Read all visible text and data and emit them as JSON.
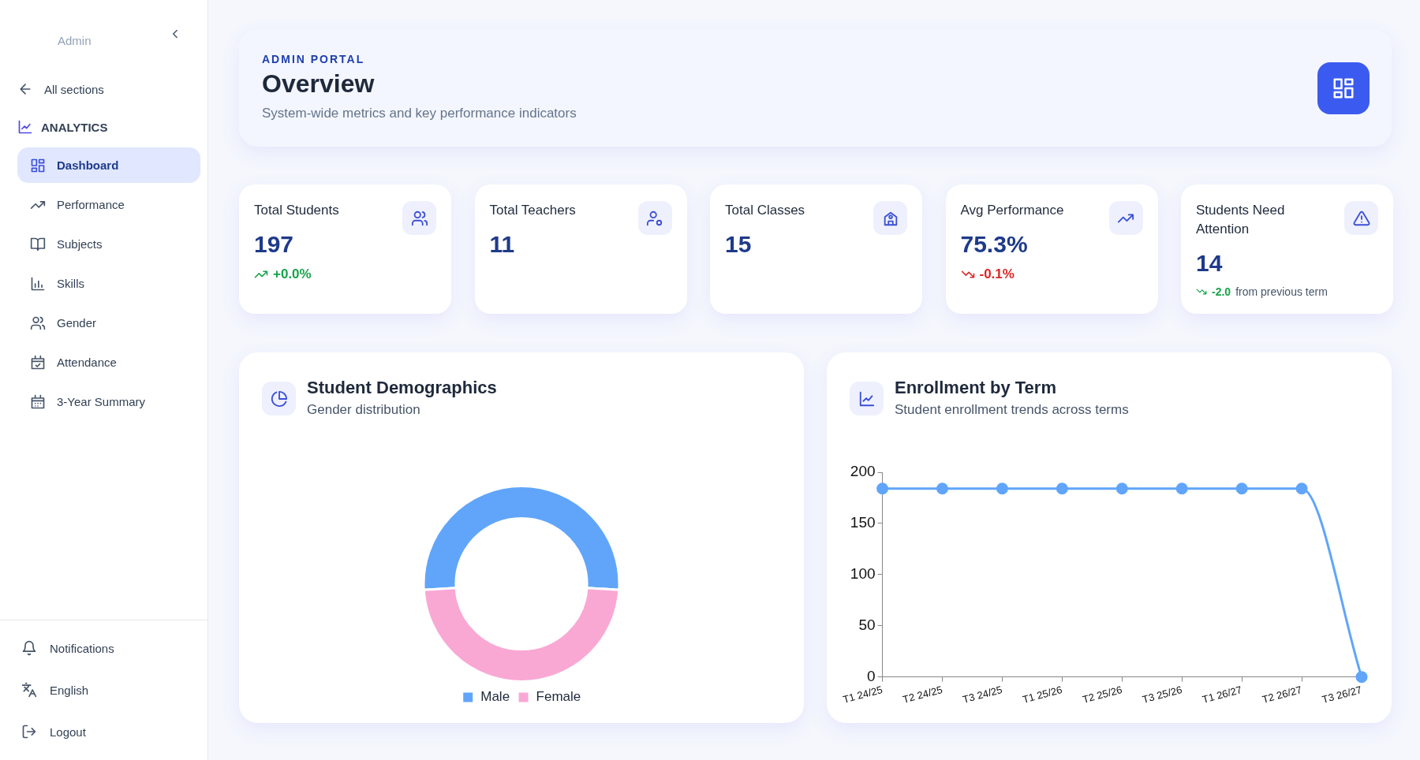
{
  "chart_data": [
    {
      "type": "other",
      "annotations": [
        "Admin",
        "All sections",
        "ANALYTICS",
        "Dashboard",
        "Performance",
        "Subjects",
        "Skills",
        "Gender",
        "Attendance",
        "3-Year Summary",
        "Notifications",
        "English",
        "Logout"
      ]
    },
    {
      "type": "other",
      "title": "Overview",
      "subtitle": "System-wide metrics and key performance indicators",
      "annotations": [
        "ADMIN PORTAL"
      ]
    },
    {
      "type": "other",
      "title": "Total Students",
      "annotations": [
        "197",
        "+0.0%"
      ],
      "color": "#16a34a"
    },
    {
      "type": "other",
      "title": "Total Teachers",
      "annotations": [
        "11"
      ]
    },
    {
      "type": "other",
      "title": "Total Classes",
      "annotations": [
        "15"
      ]
    },
    {
      "type": "other",
      "title": "Avg Performance",
      "annotations": [
        "75.3%",
        "-0.1%"
      ],
      "color": "#dc2626"
    },
    {
      "type": "other",
      "title": "Students Need Attention",
      "annotations": [
        "14",
        "-2.0",
        "from previous term"
      ],
      "color": "#16a34a"
    },
    {
      "type": "donut",
      "title": "Student Demographics",
      "subtitle": "Gender distribution",
      "categories": [
        "Male",
        "Female"
      ],
      "values": [
        52,
        48
      ],
      "colors": [
        "#60a5fa",
        "#f9a8d4"
      ],
      "legend": "bottom"
    },
    {
      "type": "line",
      "title": "Enrollment by Term",
      "subtitle": "Student enrollment trends across terms",
      "categories": [
        "T1 24/25",
        "T2 24/25",
        "T3 24/25",
        "T1 25/26",
        "T2 25/26",
        "T3 25/26",
        "T1 26/27",
        "T2 26/27",
        "T3 26/27"
      ],
      "series": [
        {
          "color": "#60a5fa",
          "values": [
            184,
            184,
            184,
            184,
            184,
            184,
            184,
            184,
            0
          ]
        }
      ],
      "ylim": [
        0,
        200
      ],
      "yticks": [
        0,
        50,
        100,
        150,
        200
      ],
      "marker": "circle"
    }
  ]
}
